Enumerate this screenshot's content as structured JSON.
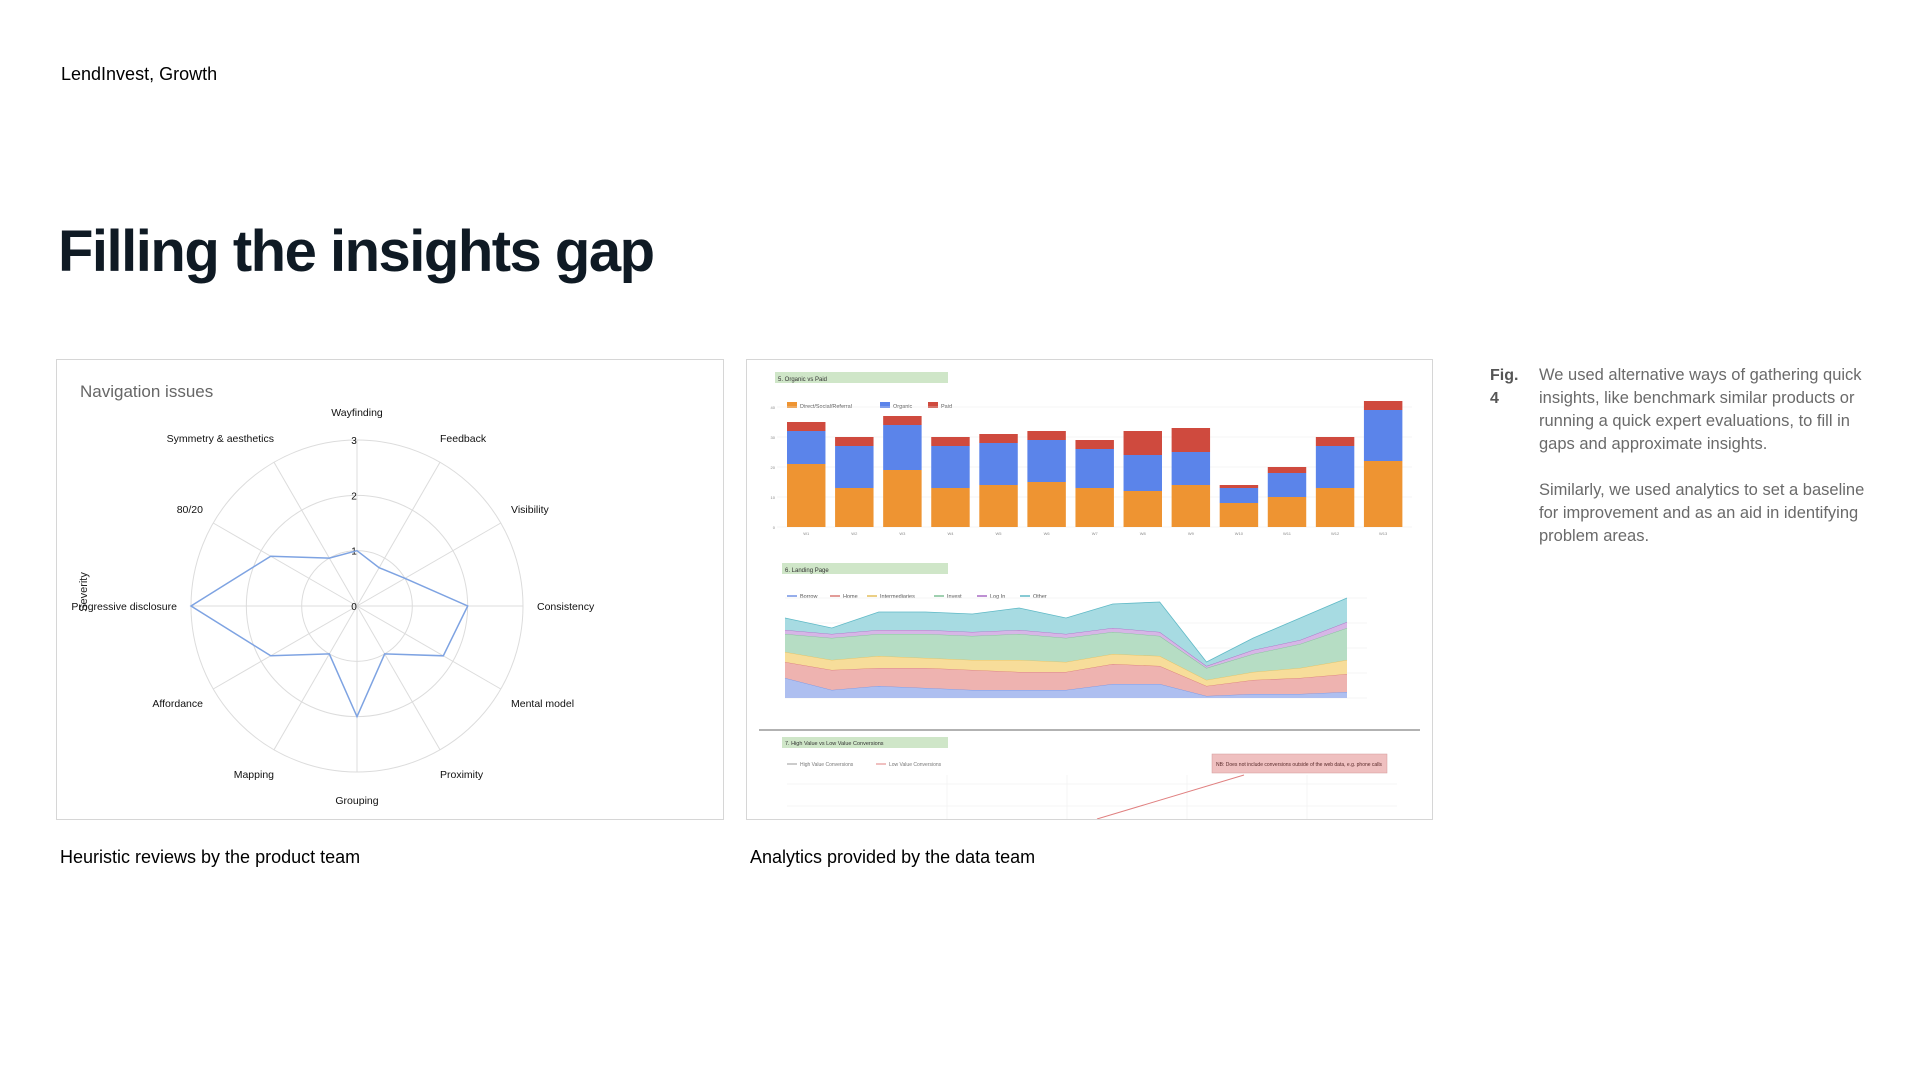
{
  "header": {
    "label": "LendInvest, Growth"
  },
  "page": {
    "title": "Filling the insights gap"
  },
  "captions": {
    "left": "Heuristic reviews by the product team",
    "right": "Analytics provided by the data team"
  },
  "figure": {
    "label": "Fig. 4",
    "paragraphs": [
      "We used alternative ways of gathering quick insights, like benchmark similar products or running a quick expert evaluations, to fill in gaps and approximate insights.",
      "Similarly, we used analytics to set a baseline for improvement and as an aid in identifying problem areas."
    ]
  },
  "colors": {
    "radar_line": "#7ea3e2",
    "grid": "#dcdcdc",
    "orange": "#ee9432",
    "blue": "#5b84ea",
    "red": "#cf4a3e"
  },
  "chart_data": [
    {
      "type": "radar",
      "title": "Navigation issues",
      "axis_label": "Severity",
      "rmax": 3,
      "ticks": [
        "0",
        "1",
        "2",
        "3"
      ],
      "categories": [
        "Wayfinding",
        "Feedback",
        "Visibility",
        "Consistency",
        "Mental model",
        "Proximity",
        "Grouping",
        "Mapping",
        "Affordance",
        "Progressive disclosure",
        "80/20",
        "Symmetry & aesthetics"
      ],
      "series": [
        {
          "name": "Severity",
          "values": [
            1.0,
            0.8,
            1.0,
            2.0,
            1.8,
            1.0,
            2.0,
            1.0,
            1.8,
            3.0,
            1.8,
            1.0
          ]
        }
      ]
    },
    {
      "type": "bar",
      "stacked": true,
      "title": "5. Organic vs Paid",
      "categories": [
        "W1",
        "W2",
        "W3",
        "W4",
        "W5",
        "W6",
        "W7",
        "W8",
        "W9",
        "W10",
        "W11",
        "W12",
        "W13"
      ],
      "series": [
        {
          "name": "Direct/Social/Referral",
          "values": [
            21,
            13,
            19,
            13,
            14,
            15,
            13,
            12,
            14,
            8,
            10,
            13,
            22
          ]
        },
        {
          "name": "Organic",
          "values": [
            11,
            14,
            15,
            14,
            14,
            14,
            13,
            12,
            11,
            5,
            8,
            14,
            17
          ]
        },
        {
          "name": "Paid",
          "values": [
            3,
            3,
            3,
            3,
            3,
            3,
            3,
            8,
            8,
            1,
            2,
            3,
            3
          ]
        }
      ],
      "ylim": [
        0,
        40
      ]
    },
    {
      "type": "area",
      "stacked": true,
      "title": "6. Landing Page",
      "categories": [
        "P1",
        "P2",
        "P3",
        "P4",
        "P5",
        "P6",
        "P7",
        "P8",
        "P9",
        "P10",
        "P11",
        "P12",
        "P13"
      ],
      "series": [
        {
          "name": "Borrow",
          "values": [
            10,
            4,
            6,
            5,
            4,
            4,
            4,
            7,
            7,
            1,
            2,
            2,
            3
          ]
        },
        {
          "name": "Home",
          "values": [
            8,
            10,
            9,
            10,
            10,
            9,
            9,
            10,
            9,
            5,
            7,
            8,
            9
          ]
        },
        {
          "name": "Intermediaries",
          "values": [
            5,
            5,
            6,
            5,
            5,
            6,
            5,
            5,
            5,
            3,
            4,
            5,
            7
          ]
        },
        {
          "name": "Invest",
          "values": [
            9,
            11,
            11,
            12,
            12,
            13,
            12,
            11,
            10,
            6,
            9,
            12,
            16
          ]
        },
        {
          "name": "Log In",
          "values": [
            2,
            2,
            2,
            2,
            2,
            2,
            2,
            2,
            2,
            1,
            2,
            2,
            3
          ]
        },
        {
          "name": "Other",
          "values": [
            6,
            3,
            9,
            9,
            9,
            11,
            8,
            12,
            15,
            2,
            6,
            11,
            12
          ]
        }
      ],
      "ylim": [
        0,
        50
      ]
    },
    {
      "type": "line",
      "title": "7. High Value vs Low Value Conversions",
      "series": [
        {
          "name": "High Value Conversions"
        },
        {
          "name": "Low Value Conversions"
        }
      ],
      "annotation": "NB: Does not include conversions outside of the web data, e.g. phone calls"
    }
  ]
}
